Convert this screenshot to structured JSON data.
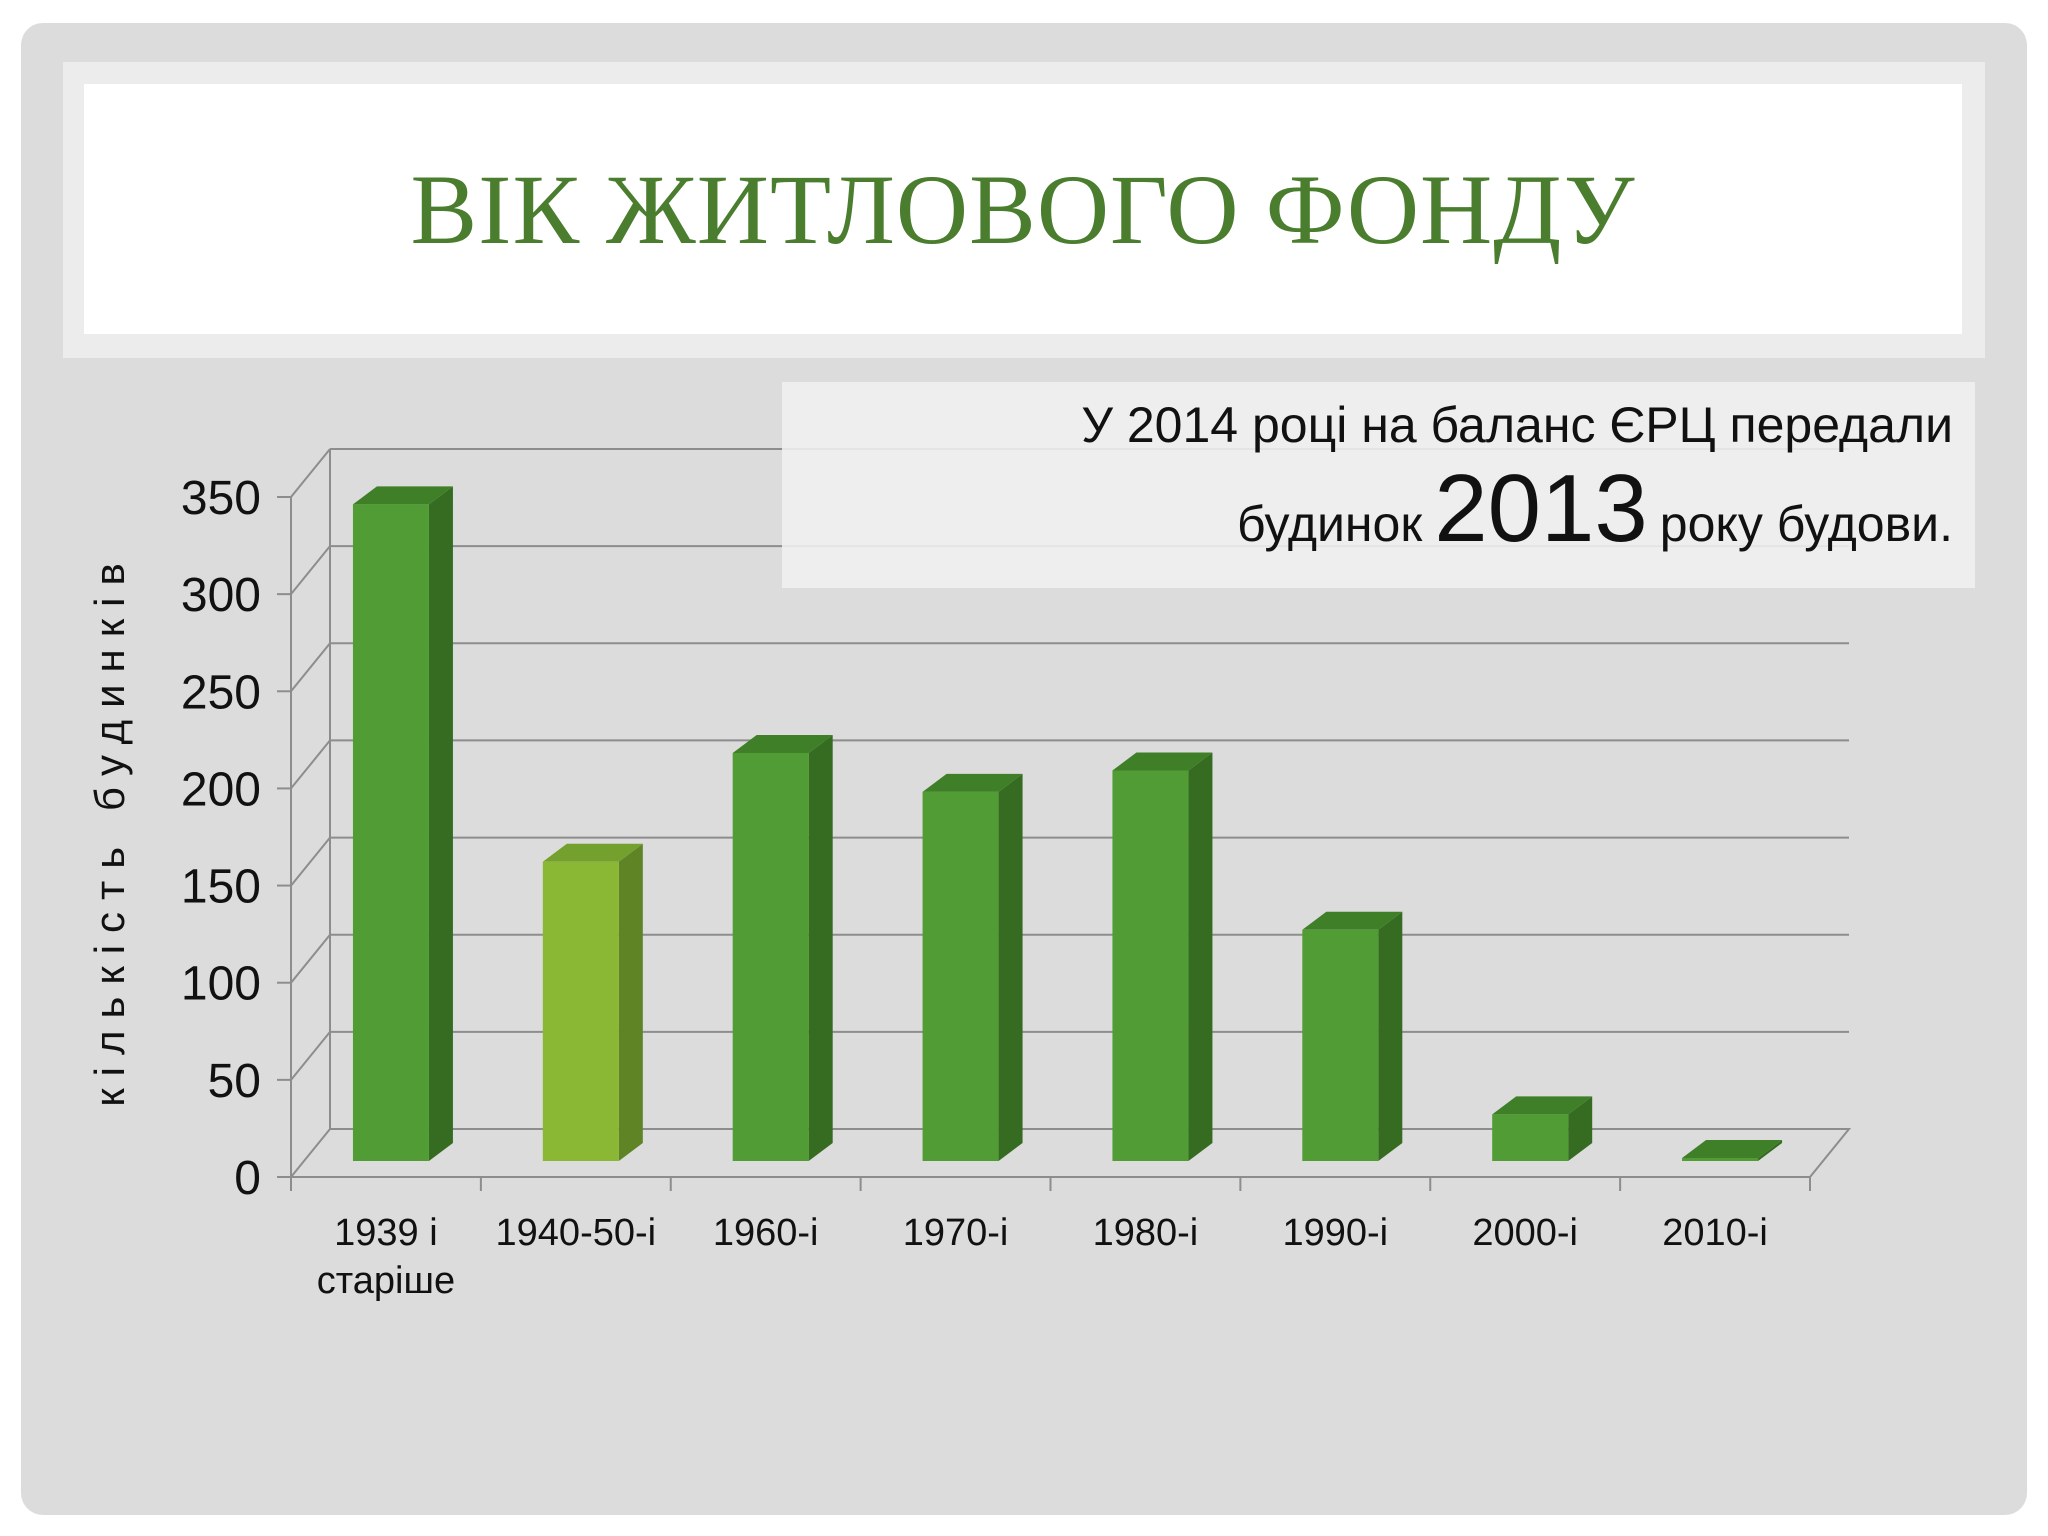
{
  "slide": {
    "title": "ВІК ЖИТЛОВОГО ФОНДУ",
    "note": {
      "line1": "У 2014 році на баланс ЄРЦ передали",
      "line2_before": "будинок",
      "line2_highlight": "2013",
      "line2_after": "року будови."
    }
  },
  "colors": {
    "title": "#4a7d2d",
    "bar_front": "#519c35",
    "bar_side": "#356c21",
    "bar_top": "#3f7f28",
    "bar_front_highlight": "#8ab834",
    "bar_side_highlight": "#5f8426",
    "bar_top_highlight": "#74a02e",
    "gridline": "#8d8d8d"
  },
  "chart_data": {
    "type": "bar",
    "categories": [
      [
        "1939 і",
        "старіше"
      ],
      [
        "1940-50-і"
      ],
      [
        "1960-і"
      ],
      [
        "1970-і"
      ],
      [
        "1980-і"
      ],
      [
        "1990-і"
      ],
      [
        "2000-і"
      ],
      [
        "2010-і"
      ]
    ],
    "values": [
      338,
      154,
      210,
      190,
      201,
      119,
      24,
      1
    ],
    "highlight_index": 1,
    "ylabel": "кількість будинків",
    "xlabel": "",
    "ylim": [
      0,
      350
    ],
    "yticks": [
      0,
      50,
      100,
      150,
      200,
      250,
      300,
      350
    ],
    "grid": true,
    "style": "3d-column"
  }
}
